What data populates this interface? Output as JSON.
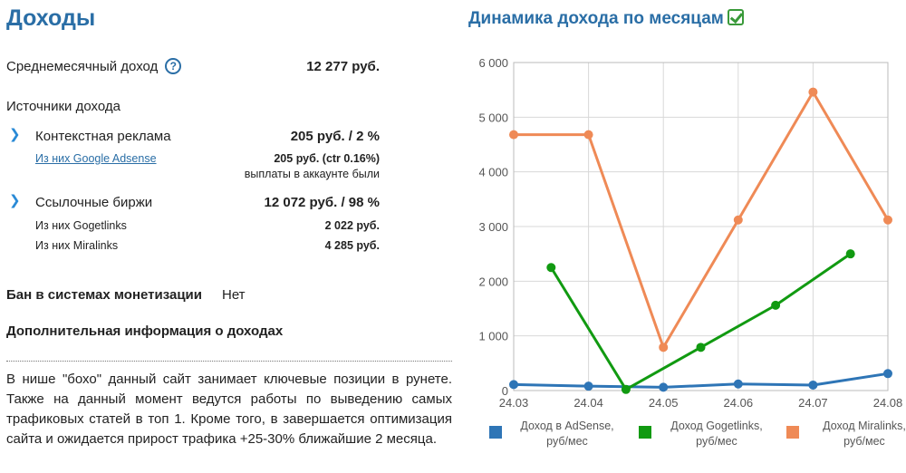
{
  "income": {
    "title": "Доходы",
    "avg_label": "Среднемесячный доход",
    "avg_help": "?",
    "avg_value": "12 277 руб.",
    "sources_label": "Источники дохода",
    "sources": [
      {
        "label": "Контекстная реклама",
        "value": "205 руб. / 2 %",
        "subs": [
          {
            "label": "Из них Google Adsense",
            "value": "205 руб. (ctr 0.16%)",
            "note": "выплаты в аккаунте были"
          }
        ]
      },
      {
        "label": "Ссылочные биржи",
        "value": "12 072 руб. / 98 %",
        "subs": [
          {
            "label": "Из них Gogetlinks",
            "value": "2 022 руб."
          },
          {
            "label": "Из них Miralinks",
            "value": "4 285 руб."
          }
        ]
      }
    ],
    "ban_label": "Бан в системах монетизации",
    "ban_value": "Нет",
    "additional_label": "Дополнительная информация о доходах",
    "additional_text": "В нише \"бохо\" данный сайт занимает ключевые позиции в рунете. Также на данный момент ведутся работы по выведению самых трафиковых статей в топ 1. Кроме того, в завершается оптимизация сайта и ожидается прирост трафика +25-30% ближайшие 2 месяца."
  },
  "chart_data": {
    "type": "line",
    "title": "Динамика дохода по месяцам",
    "x_tick_labels": [
      "24.03",
      "24.04",
      "24.05",
      "24.06",
      "24.07",
      "24.08"
    ],
    "y_tick_labels": [
      "0",
      "1 000",
      "2 000",
      "3 000",
      "4 000",
      "5 000",
      "6 000"
    ],
    "ylim": [
      0,
      6000
    ],
    "grid": true,
    "legend_position": "bottom",
    "series": [
      {
        "name": "Доход в AdSense, руб/мес",
        "color": "#2e75b6",
        "x": [
          0,
          1,
          2,
          3,
          4,
          5
        ],
        "values": [
          110,
          80,
          60,
          120,
          100,
          310
        ]
      },
      {
        "name": "Доход Gogetlinks, руб/мес",
        "color": "#119a11",
        "x": [
          0.5,
          1.5,
          2.5,
          3.5,
          4.5
        ],
        "values": [
          2250,
          20,
          790,
          1560,
          2500
        ]
      },
      {
        "name": "Доход Miralinks, руб/мес",
        "color": "#ef8a56",
        "x": [
          0,
          1,
          2,
          3,
          4,
          5
        ],
        "values": [
          4680,
          4680,
          790,
          3120,
          5460,
          3120
        ]
      }
    ]
  }
}
